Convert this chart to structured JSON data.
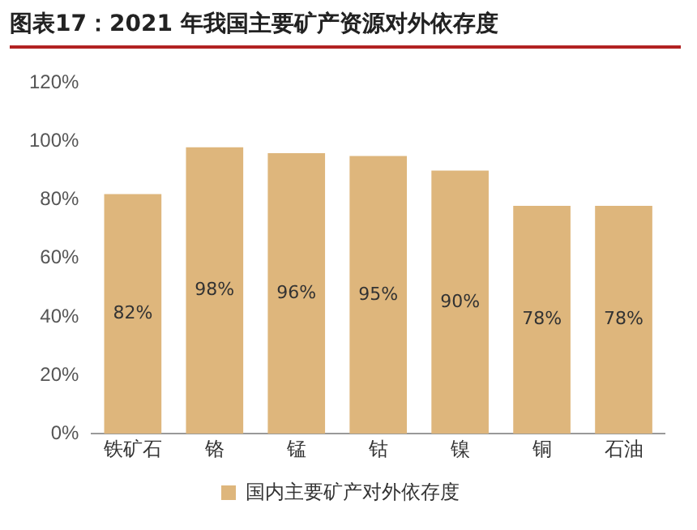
{
  "chart_data": {
    "type": "bar",
    "title": "图表17：2021 年我国主要矿产资源对外依存度",
    "categories": [
      "铁矿石",
      "铬",
      "锰",
      "钴",
      "镍",
      "铜",
      "石油"
    ],
    "series": [
      {
        "name": "国内主要矿产对外依存度",
        "color": "#deb67c",
        "values": [
          82,
          98,
          96,
          95,
          90,
          78,
          78
        ],
        "value_labels": [
          "82%",
          "98%",
          "96%",
          "95%",
          "90%",
          "78%",
          "78%"
        ]
      }
    ],
    "ylim": [
      0,
      120
    ],
    "yticks": [
      {
        "value": 0,
        "label": "0%"
      },
      {
        "value": 20,
        "label": "20%"
      },
      {
        "value": 40,
        "label": "40%"
      },
      {
        "value": 60,
        "label": "60%"
      },
      {
        "value": 80,
        "label": "80%"
      },
      {
        "value": 100,
        "label": "100%"
      },
      {
        "value": 120,
        "label": "120%"
      }
    ],
    "grid": false,
    "legend": "bottom"
  }
}
